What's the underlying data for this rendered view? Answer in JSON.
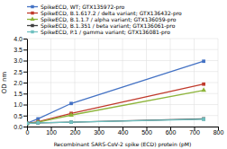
{
  "chart_data": {
    "type": "line",
    "x": [
      0,
      46,
      185,
      740
    ],
    "series": [
      {
        "name": "SpikeECD, WT; GTX135972-pro",
        "color": "#4472C4",
        "marker": "square",
        "values": [
          0.16,
          0.35,
          1.05,
          2.97
        ]
      },
      {
        "name": "SpikeECD, B.1.617.2 / delta variant; GTX136432-pro",
        "color": "#C0392B",
        "marker": "square",
        "values": [
          0.14,
          0.22,
          0.6,
          1.93
        ]
      },
      {
        "name": "SpikeECD, B.1.1.7 / alpha variant; GTX136059-pro",
        "color": "#8DB43A",
        "marker": "triangle",
        "values": [
          0.14,
          0.2,
          0.52,
          1.65
        ]
      },
      {
        "name": "SpikeECD, B.1.351 / beta variant; GTX136061-pro",
        "color": "#404040",
        "marker": "square",
        "values": [
          0.14,
          0.17,
          0.2,
          0.35
        ]
      },
      {
        "name": "SpikeECD, P.1 / gamma variant; GTX136081-pro",
        "color": "#70C0C0",
        "marker": "square",
        "values": [
          0.14,
          0.17,
          0.2,
          0.33
        ]
      }
    ],
    "xlabel": "Recombinant SARS-CoV-2 spike (ECD) protein (pM)",
    "ylabel": "OD nm",
    "xlim": [
      0,
      800
    ],
    "ylim": [
      0,
      4
    ],
    "xticks": [
      0,
      100,
      200,
      300,
      400,
      500,
      600,
      700,
      800
    ],
    "yticks": [
      {
        "value": 0,
        "label": "0.0"
      },
      0.5,
      {
        "value": 1.0,
        "label": "1.0"
      },
      1.5,
      {
        "value": 2.0,
        "label": "2.0"
      },
      2.5,
      {
        "value": 3.0,
        "label": "3.0"
      },
      3.5,
      {
        "value": 4.0,
        "label": "4.0"
      }
    ],
    "grid": true,
    "legend": "upper left"
  }
}
